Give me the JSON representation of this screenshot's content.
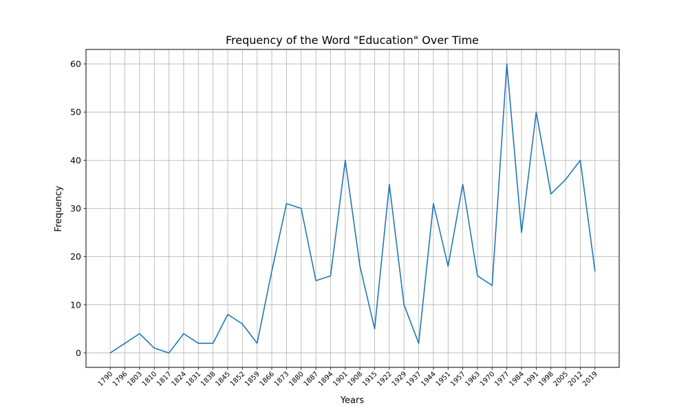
{
  "chart_data": {
    "type": "line",
    "title": "Frequency of the Word \"Education\" Over Time",
    "xlabel": "Years",
    "ylabel": "Frequency",
    "x": [
      "1790",
      "1796",
      "1803",
      "1810",
      "1817",
      "1824",
      "1831",
      "1838",
      "1845",
      "1852",
      "1859",
      "1866",
      "1873",
      "1880",
      "1887",
      "1894",
      "1901",
      "1908",
      "1915",
      "1922",
      "1929",
      "1937",
      "1944",
      "1951",
      "1957",
      "1963",
      "1970",
      "1977",
      "1984",
      "1991",
      "1998",
      "2005",
      "2012",
      "2019"
    ],
    "series": [
      {
        "values": [
          0,
          2,
          4,
          1,
          0,
          4,
          2,
          2,
          8,
          6,
          2,
          17,
          31,
          30,
          15,
          16,
          40,
          18,
          5,
          35,
          10,
          2,
          31,
          18,
          35,
          16,
          14,
          60,
          25,
          50,
          33,
          36,
          40,
          17
        ]
      }
    ],
    "yticks": [
      0,
      10,
      20,
      30,
      40,
      50,
      60
    ],
    "ylim": [
      -3,
      63
    ],
    "grid": true,
    "legend": "none",
    "line_color": "#1f77b4",
    "grid_color": "#b0b0b0"
  }
}
